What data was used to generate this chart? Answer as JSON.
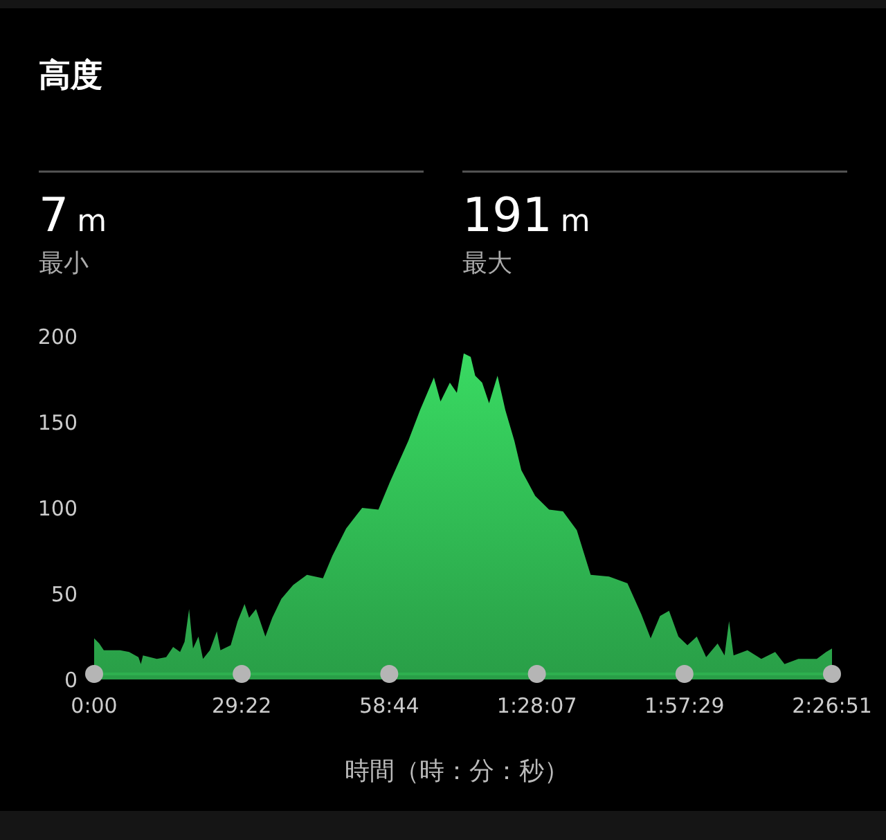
{
  "chart_data": {
    "type": "area",
    "title": "高度",
    "xlabel": "時間（時：分：秒）",
    "annotations": [
      "7 m",
      "最小",
      "191 m",
      "最大"
    ],
    "xlim": [
      0,
      146.85
    ],
    "xticks": [
      {
        "value": 0,
        "label": "0:00"
      },
      {
        "value": 29.367,
        "label": "29:22"
      },
      {
        "value": 58.733,
        "label": "58:44"
      },
      {
        "value": 88.117,
        "label": "1:28:07"
      },
      {
        "value": 117.483,
        "label": "1:57:29"
      },
      {
        "value": 146.85,
        "label": "2:26:51"
      }
    ],
    "ylim": [
      0,
      200
    ],
    "yticks": [
      0,
      50,
      100,
      150,
      200
    ],
    "grid": false,
    "series": [
      {
        "color": "#2eb04f",
        "x": [
          0,
          1.02,
          1.92,
          5.16,
          6.96,
          8.82,
          9.3,
          9.72,
          12.48,
          14.34,
          15.72,
          17.1,
          18,
          18.9,
          19.68,
          20.76,
          21.66,
          23.04,
          24.42,
          25.14,
          27.18,
          28.56,
          29.94,
          30.84,
          32.22,
          34.08,
          35.46,
          37.26,
          39.6,
          42.36,
          45.54,
          47.4,
          50.16,
          53.34,
          56.58,
          58.86,
          62.52,
          64.86,
          67.62,
          68.94,
          70.8,
          72.18,
          73.56,
          74.94,
          75.84,
          77.22,
          78.6,
          80.28,
          81.84,
          83.64,
          85.02,
          87.78,
          90.54,
          93.3,
          96.06,
          98.82,
          102.48,
          106.14,
          108.9,
          110.76,
          112.62,
          114.42,
          116.28,
          118.08,
          119.94,
          121.8,
          124.08,
          125.46,
          126.36,
          127.26,
          130.02,
          132.78,
          135.54,
          137.4,
          140.16,
          143.82,
          145.68,
          146.85
        ],
        "values": [
          24,
          21,
          17,
          17,
          16,
          13,
          9,
          14,
          12,
          13,
          19,
          16,
          22,
          41,
          18,
          25,
          12,
          17,
          28,
          17,
          20,
          34,
          44,
          36,
          41,
          25,
          36,
          47,
          55,
          61,
          59,
          72,
          88,
          100,
          99,
          115,
          139,
          157,
          176,
          162,
          173,
          167,
          190,
          188,
          177,
          173,
          161,
          177,
          157,
          139,
          122,
          107,
          99,
          98,
          87,
          61,
          60,
          56,
          38,
          24,
          37,
          40,
          25,
          20,
          25,
          13,
          21,
          14,
          34,
          14,
          17,
          12,
          16,
          9,
          12,
          12,
          16,
          18
        ]
      }
    ]
  }
}
